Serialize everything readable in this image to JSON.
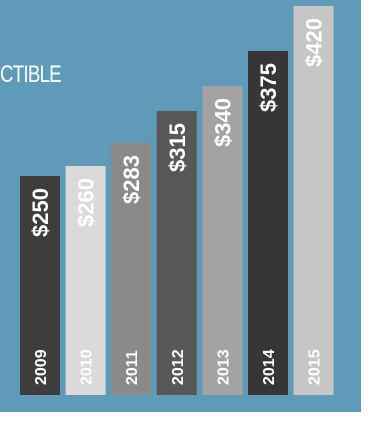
{
  "title": "CTIBLE",
  "colors": {
    "background": "#5f9bb8",
    "title": "#ffffff",
    "label": "#ffffff"
  },
  "chart_data": {
    "type": "bar",
    "title": "CTIBLE",
    "xlabel": "",
    "ylabel": "",
    "categories": [
      "2009",
      "2010",
      "2011",
      "2012",
      "2013",
      "2014",
      "2015"
    ],
    "values": [
      250,
      260,
      283,
      315,
      340,
      375,
      420
    ],
    "value_labels": [
      "$250",
      "$260",
      "$283",
      "$315",
      "$340",
      "$375",
      "$420"
    ],
    "bar_colors": [
      "#3f3c3d",
      "#dadada",
      "#8a8a8a",
      "#585858",
      "#a3a3a3",
      "#373536",
      "#c6c6c6"
    ],
    "grid": false,
    "legend": "none"
  }
}
